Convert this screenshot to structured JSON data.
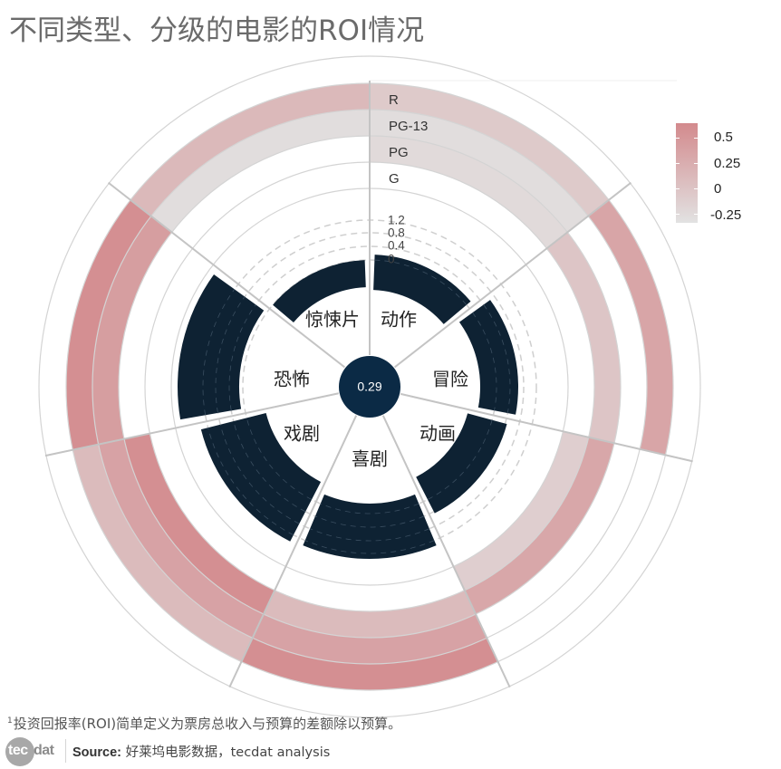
{
  "title": "不同类型、分级的电影的ROI情况",
  "footnote": {
    "marker": "1",
    "text": "投资回报率(ROI)简单定义为票房总收入与预算的差额除以预算。"
  },
  "footer": {
    "logo_left": "tec",
    "logo_right": "dat",
    "source_label": "Source:",
    "source_text": " 好莱坞电影数据，tecdat analysis"
  },
  "legend": {
    "title": "",
    "labels": [
      "0.5",
      "0.25",
      "0",
      "-0.25"
    ],
    "color_high": "#d38a8d",
    "color_low": "#e2e2e2"
  },
  "center_label": "0.29",
  "colors": {
    "bar": "#0e2233",
    "center": "#0b2a45",
    "grid": "#d4d4d4",
    "divider": "#c4c4c4",
    "text": "#222222"
  },
  "chart_data": {
    "type": "radial-bar-heatmap",
    "title": "不同类型、分级的电影的ROI情况",
    "overall_roi": 0.29,
    "genres": [
      "动作",
      "冒险",
      "动画",
      "喜剧",
      "戏剧",
      "恐怖",
      "惊悚片"
    ],
    "genre_sector_degrees": [
      [
        0,
        52
      ],
      [
        52,
        103
      ],
      [
        103,
        155
      ],
      [
        155,
        205
      ],
      [
        205,
        258
      ],
      [
        258,
        308
      ],
      [
        308,
        360
      ]
    ],
    "inner_axis_ticks": [
      "0",
      "0.4",
      "0.8",
      "1.2"
    ],
    "inner_bars": [
      {
        "genre": "动作",
        "r0": 107,
        "r1": 146
      },
      {
        "genre": "冒险",
        "r0": 122,
        "r1": 164
      },
      {
        "genre": "动画",
        "r0": 112,
        "r1": 157
      },
      {
        "genre": "喜剧",
        "r0": 129,
        "r1": 190
      },
      {
        "genre": "戏剧",
        "r0": 118,
        "r1": 192
      },
      {
        "genre": "恐怖",
        "r0": 144,
        "r1": 212
      },
      {
        "genre": "惊悚片",
        "r0": 110,
        "r1": 140
      }
    ],
    "ratings": [
      "G",
      "PG",
      "PG-13",
      "R"
    ],
    "rating_roi": {
      "动作": {
        "G": null,
        "PG": -0.22,
        "PG-13": -0.25,
        "R": -0.05
      },
      "冒险": {
        "G": null,
        "PG": 0.0,
        "PG-13": null,
        "R": 0.32
      },
      "动画": {
        "G": -0.1,
        "PG": 0.3,
        "PG-13": null,
        "R": null
      },
      "喜剧": {
        "G": null,
        "PG": 0.1,
        "PG-13": 0.35,
        "R": 0.55
      },
      "戏剧": {
        "G": null,
        "PG": 0.55,
        "PG-13": 0.35,
        "R": 0.1
      },
      "恐怖": {
        "G": null,
        "PG": null,
        "PG-13": 0.4,
        "R": 0.55
      },
      "惊悚片": {
        "G": null,
        "PG": null,
        "PG-13": -0.25,
        "R": 0.12
      }
    },
    "legend_range": [
      -0.3,
      0.6
    ],
    "legend_ticks": [
      0.5,
      0.25,
      0,
      -0.25
    ]
  }
}
